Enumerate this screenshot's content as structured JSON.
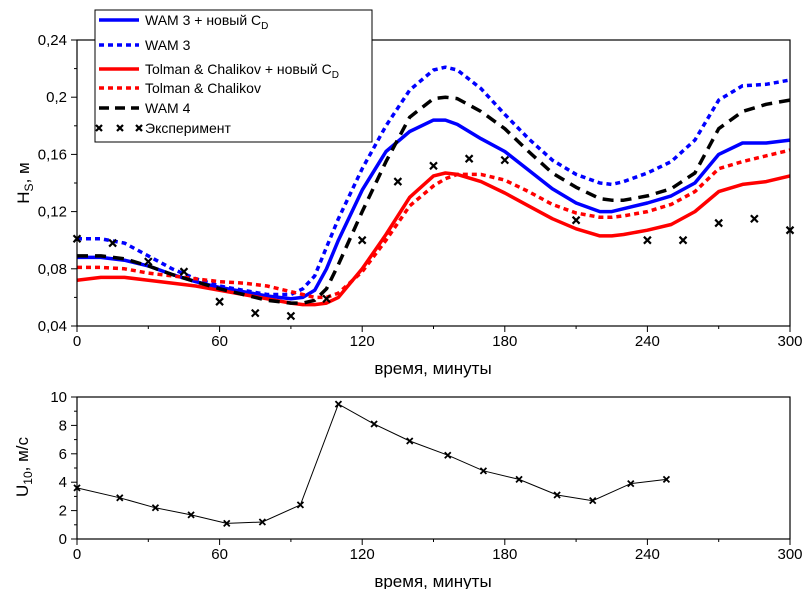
{
  "chart_data": [
    {
      "type": "line",
      "xlabel": "время, минуты",
      "ylabel_main": "H",
      "ylabel_sub": "S",
      "ylabel_unit": ", м",
      "xlim": [
        0,
        300
      ],
      "ylim": [
        0.04,
        0.24
      ],
      "xticks": [
        "0",
        "60",
        "120",
        "180",
        "240",
        "300"
      ],
      "yticks": [
        "0,04",
        "0,08",
        "0,12",
        "0,16",
        "0,2",
        "0,24"
      ],
      "legend_position": "top-left",
      "series": [
        {
          "name": "WAM 3 + новый C",
          "name_sub": "D",
          "color": "#0000ff",
          "style": "solid",
          "x": [
            0,
            10,
            20,
            30,
            40,
            50,
            60,
            70,
            80,
            90,
            95,
            100,
            105,
            110,
            120,
            130,
            140,
            150,
            155,
            160,
            170,
            180,
            190,
            200,
            210,
            220,
            225,
            230,
            240,
            250,
            260,
            270,
            280,
            290,
            300
          ],
          "y": [
            0.088,
            0.088,
            0.086,
            0.082,
            0.076,
            0.071,
            0.067,
            0.064,
            0.061,
            0.059,
            0.06,
            0.065,
            0.08,
            0.1,
            0.135,
            0.162,
            0.176,
            0.184,
            0.184,
            0.181,
            0.171,
            0.162,
            0.149,
            0.136,
            0.126,
            0.12,
            0.12,
            0.122,
            0.126,
            0.131,
            0.14,
            0.16,
            0.168,
            0.168,
            0.17
          ]
        },
        {
          "name": "WAM 3",
          "color": "#0000ff",
          "style": "dotted",
          "x": [
            0,
            10,
            20,
            30,
            40,
            50,
            60,
            70,
            80,
            90,
            95,
            100,
            105,
            110,
            120,
            130,
            140,
            150,
            155,
            160,
            170,
            180,
            190,
            200,
            210,
            220,
            225,
            230,
            240,
            250,
            260,
            270,
            280,
            290,
            300
          ],
          "y": [
            0.101,
            0.101,
            0.098,
            0.089,
            0.08,
            0.073,
            0.068,
            0.065,
            0.062,
            0.062,
            0.066,
            0.075,
            0.095,
            0.115,
            0.15,
            0.18,
            0.205,
            0.219,
            0.221,
            0.219,
            0.206,
            0.188,
            0.171,
            0.156,
            0.146,
            0.14,
            0.139,
            0.141,
            0.147,
            0.155,
            0.17,
            0.198,
            0.208,
            0.209,
            0.212
          ]
        },
        {
          "name": "Tolman & Chalikov + новый C",
          "name_sub": "D",
          "color": "#ff0000",
          "style": "solid",
          "x": [
            0,
            10,
            20,
            30,
            40,
            50,
            60,
            70,
            80,
            90,
            95,
            100,
            105,
            110,
            120,
            130,
            140,
            150,
            155,
            160,
            170,
            180,
            190,
            200,
            210,
            220,
            225,
            230,
            240,
            250,
            260,
            270,
            280,
            290,
            300
          ],
          "y": [
            0.072,
            0.074,
            0.074,
            0.072,
            0.07,
            0.068,
            0.065,
            0.062,
            0.059,
            0.056,
            0.055,
            0.055,
            0.056,
            0.06,
            0.08,
            0.104,
            0.13,
            0.145,
            0.147,
            0.146,
            0.141,
            0.133,
            0.124,
            0.115,
            0.108,
            0.103,
            0.103,
            0.104,
            0.107,
            0.111,
            0.12,
            0.134,
            0.139,
            0.141,
            0.145
          ]
        },
        {
          "name": "Tolman & Chalikov",
          "color": "#ff0000",
          "style": "dotted",
          "x": [
            0,
            10,
            20,
            30,
            40,
            50,
            60,
            70,
            80,
            90,
            95,
            100,
            105,
            110,
            120,
            130,
            140,
            150,
            155,
            160,
            170,
            180,
            190,
            200,
            210,
            220,
            225,
            230,
            240,
            250,
            260,
            270,
            280,
            290,
            300
          ],
          "y": [
            0.081,
            0.081,
            0.08,
            0.077,
            0.075,
            0.073,
            0.071,
            0.07,
            0.068,
            0.064,
            0.062,
            0.06,
            0.06,
            0.063,
            0.078,
            0.1,
            0.124,
            0.138,
            0.143,
            0.146,
            0.146,
            0.142,
            0.134,
            0.125,
            0.119,
            0.116,
            0.116,
            0.117,
            0.12,
            0.125,
            0.134,
            0.15,
            0.155,
            0.159,
            0.163
          ]
        },
        {
          "name": "WAM 4",
          "color": "#000000",
          "style": "dashed",
          "x": [
            0,
            10,
            20,
            30,
            40,
            50,
            60,
            70,
            80,
            90,
            95,
            100,
            105,
            110,
            120,
            130,
            140,
            150,
            155,
            160,
            170,
            180,
            190,
            200,
            210,
            220,
            225,
            230,
            240,
            250,
            260,
            270,
            280,
            290,
            300
          ],
          "y": [
            0.089,
            0.089,
            0.087,
            0.082,
            0.076,
            0.071,
            0.066,
            0.062,
            0.058,
            0.056,
            0.056,
            0.058,
            0.066,
            0.083,
            0.12,
            0.155,
            0.186,
            0.199,
            0.2,
            0.199,
            0.19,
            0.178,
            0.162,
            0.147,
            0.137,
            0.129,
            0.128,
            0.128,
            0.131,
            0.136,
            0.147,
            0.178,
            0.19,
            0.195,
            0.198
          ]
        },
        {
          "name": "Эксперимент",
          "color": "#000000",
          "style": "markers",
          "x": [
            0,
            15,
            30,
            45,
            60,
            75,
            90,
            105,
            120,
            135,
            150,
            165,
            180,
            210,
            240,
            255,
            270,
            285,
            300
          ],
          "y": [
            0.101,
            0.098,
            0.085,
            0.078,
            0.057,
            0.049,
            0.047,
            0.059,
            0.1,
            0.141,
            0.152,
            0.157,
            0.156,
            0.114,
            0.1,
            0.1,
            0.112,
            0.115,
            0.107
          ]
        }
      ]
    },
    {
      "type": "line",
      "xlabel": "время, минуты",
      "ylabel_main": "U",
      "ylabel_sub": "10",
      "ylabel_unit": ", м/с",
      "xlim": [
        0,
        300
      ],
      "ylim": [
        0,
        10
      ],
      "xticks": [
        "0",
        "60",
        "120",
        "180",
        "240",
        "300"
      ],
      "yticks": [
        "0",
        "2",
        "4",
        "6",
        "8",
        "10"
      ],
      "series": [
        {
          "color": "#000000",
          "style": "line-markers",
          "x": [
            0,
            18,
            33,
            48,
            63,
            78,
            94,
            110,
            125,
            140,
            156,
            171,
            186,
            202,
            217,
            233,
            248
          ],
          "y": [
            3.6,
            2.9,
            2.2,
            1.7,
            1.1,
            1.2,
            2.4,
            9.5,
            8.1,
            6.9,
            5.9,
            4.8,
            4.2,
            3.1,
            2.7,
            3.9,
            4.2
          ]
        }
      ]
    }
  ]
}
